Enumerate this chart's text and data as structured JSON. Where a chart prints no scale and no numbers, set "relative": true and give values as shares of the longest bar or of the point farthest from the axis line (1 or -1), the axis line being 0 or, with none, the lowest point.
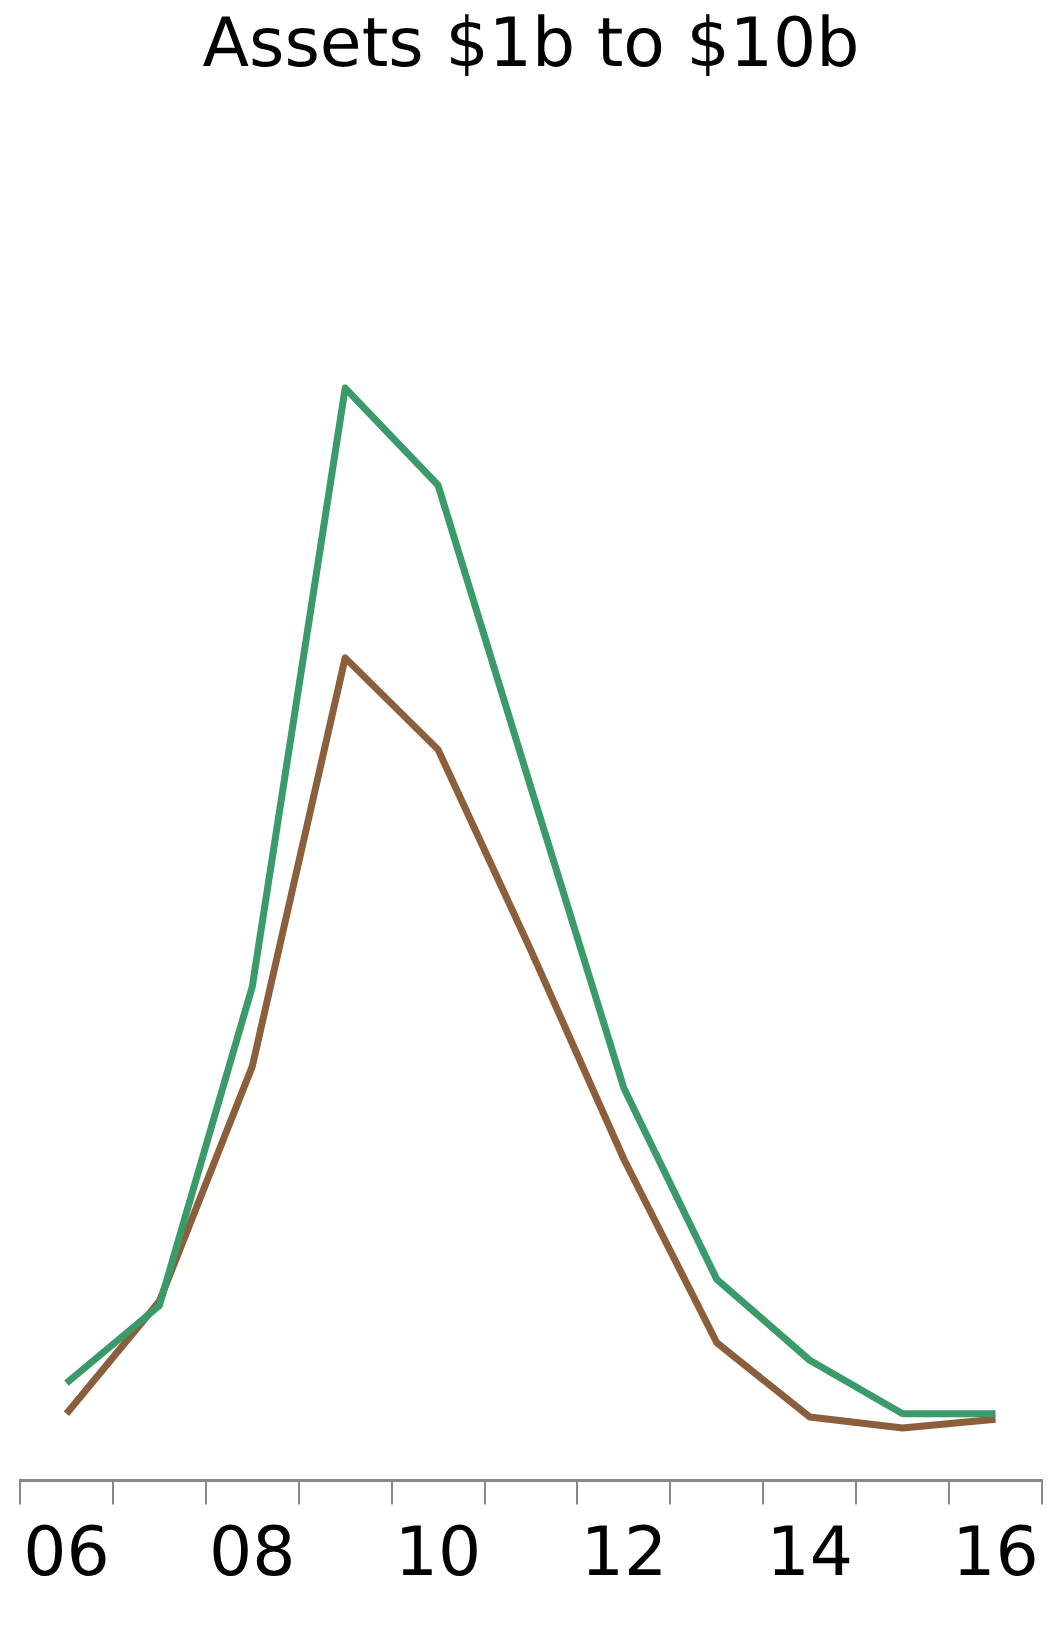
{
  "chart_data": {
    "type": "line",
    "title": "Assets $1b to $10b",
    "relative": true,
    "grid": false,
    "legend": false,
    "marker": "none",
    "line_style": "solid",
    "categories": [
      "06",
      null,
      "08",
      null,
      "10",
      null,
      "12",
      null,
      "14",
      null,
      "16"
    ],
    "series": [
      {
        "color": "#3a9a6a",
        "values": [
          0.089,
          0.16,
          0.452,
          1,
          0.911,
          0.634,
          0.359,
          0.184,
          0.11,
          0.061,
          0.061
        ]
      },
      {
        "color": "#8b5e3c",
        "values": [
          0.061,
          0.164,
          0.379,
          0.753,
          0.669,
          0.485,
          0.294,
          0.126,
          0.058,
          0.048,
          0.056
        ]
      }
    ]
  }
}
